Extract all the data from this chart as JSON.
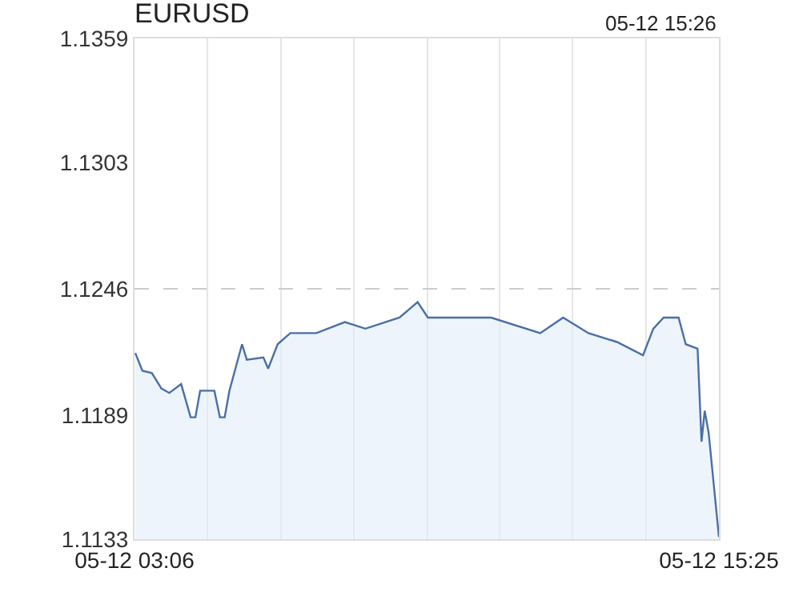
{
  "chart_data": {
    "type": "area",
    "title": "EURUSD",
    "annotations": [
      "05-12 15:26"
    ],
    "x": [
      "--05-12T03:07",
      "--05-12T03:16",
      "--05-12T03:28",
      "--05-12T03:40",
      "--05-12T03:50",
      "--05-12T04:05",
      "--05-12T04:17",
      "--05-12T04:23",
      "--05-12T04:29",
      "--05-12T04:47",
      "--05-12T04:54",
      "--05-12T05:00",
      "--05-12T05:06",
      "--05-12T05:22",
      "--05-12T05:28",
      "--05-12T05:49",
      "--05-12T05:55",
      "--05-12T06:07",
      "--05-12T06:23",
      "--05-12T06:56",
      "--05-12T07:32",
      "--05-12T07:58",
      "--05-12T08:41",
      "--05-12T09:04",
      "--05-12T09:17",
      "--05-12T10:37",
      "--05-12T11:39",
      "--05-12T12:08",
      "--05-12T12:40",
      "--05-12T13:16",
      "--05-12T13:49",
      "--05-12T14:02",
      "--05-12T14:15",
      "--05-12T14:34",
      "--05-12T14:43",
      "--05-12T14:58",
      "--05-12T15:03",
      "--05-12T15:07",
      "--05-12T15:12",
      "--05-12T15:25"
    ],
    "series": [
      {
        "color": "#4a6fa5",
        "values": [
          1.1217,
          1.1209,
          1.1208,
          1.1201,
          1.1199,
          1.1203,
          1.1188,
          1.1188,
          1.12,
          1.12,
          1.1188,
          1.1188,
          1.12,
          1.1221,
          1.1214,
          1.1215,
          1.121,
          1.1221,
          1.1226,
          1.1226,
          1.1231,
          1.1228,
          1.1233,
          1.124,
          1.1233,
          1.1233,
          1.1226,
          1.1233,
          1.1226,
          1.1222,
          1.1216,
          1.1228,
          1.1233,
          1.1233,
          1.1221,
          1.1219,
          1.1177,
          1.1191,
          1.1181,
          1.1134
        ]
      }
    ],
    "xlim": [
      "--05-12T03:06",
      "--05-12T15:25"
    ],
    "xticks": [
      {
        "value": "--05-12T03:06",
        "label": "05-12 03:06"
      },
      {
        "value": "--05-12T04:38",
        "label": null
      },
      {
        "value": "--05-12T06:11",
        "label": null
      },
      {
        "value": "--05-12T07:43",
        "label": null
      },
      {
        "value": "--05-12T09:16",
        "label": null
      },
      {
        "value": "--05-12T10:48",
        "label": null
      },
      {
        "value": "--05-12T12:20",
        "label": null
      },
      {
        "value": "--05-12T13:53",
        "label": null
      },
      {
        "value": "--05-12T15:25",
        "label": "05-12 15:25"
      }
    ],
    "ylim": [
      1.1133,
      1.1359
    ],
    "yticks": [
      1.1133,
      1.1189,
      1.1246,
      1.1303,
      1.1359
    ],
    "ref_lines": [
      {
        "axis": "y",
        "value": 1.1246,
        "line_style": "dashed",
        "color": "#cccccc"
      }
    ],
    "grid": "x"
  }
}
